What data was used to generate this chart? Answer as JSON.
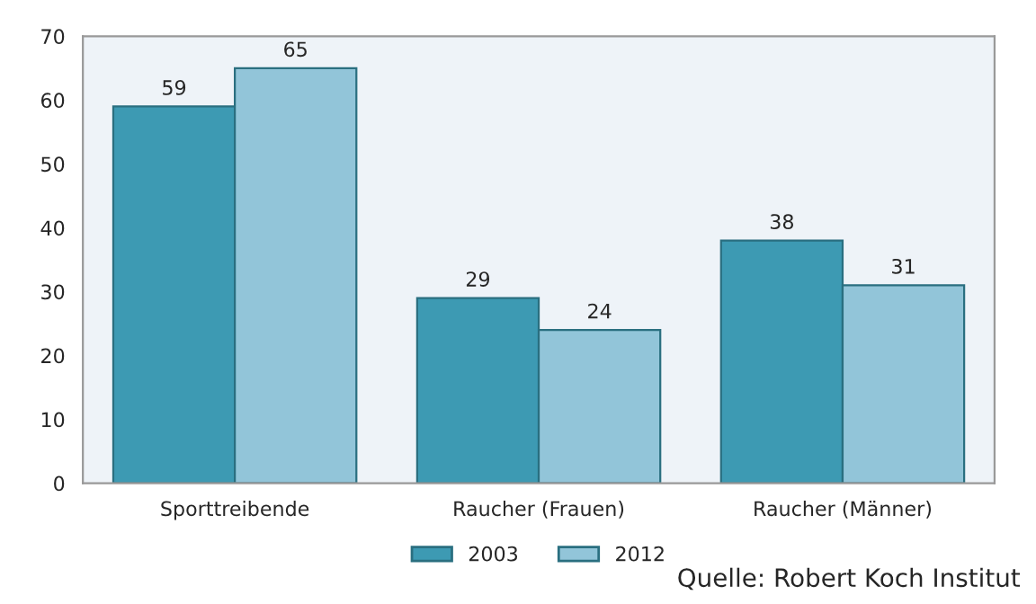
{
  "chart_data": {
    "type": "bar",
    "categories": [
      "Sporttreibende",
      "Raucher (Frauen)",
      "Raucher (Männer)"
    ],
    "series": [
      {
        "name": "2003",
        "color": "#3d9ab3",
        "values": [
          59,
          29,
          38
        ]
      },
      {
        "name": "2012",
        "color": "#92c5d9",
        "values": [
          65,
          24,
          31
        ]
      }
    ],
    "ylim": [
      0,
      70
    ],
    "yticks": [
      0,
      10,
      20,
      30,
      40,
      50,
      60,
      70
    ],
    "grid": false,
    "legend": "bottom",
    "data_labels": true,
    "annotations": [
      "Quelle: Robert Koch Institut"
    ]
  }
}
